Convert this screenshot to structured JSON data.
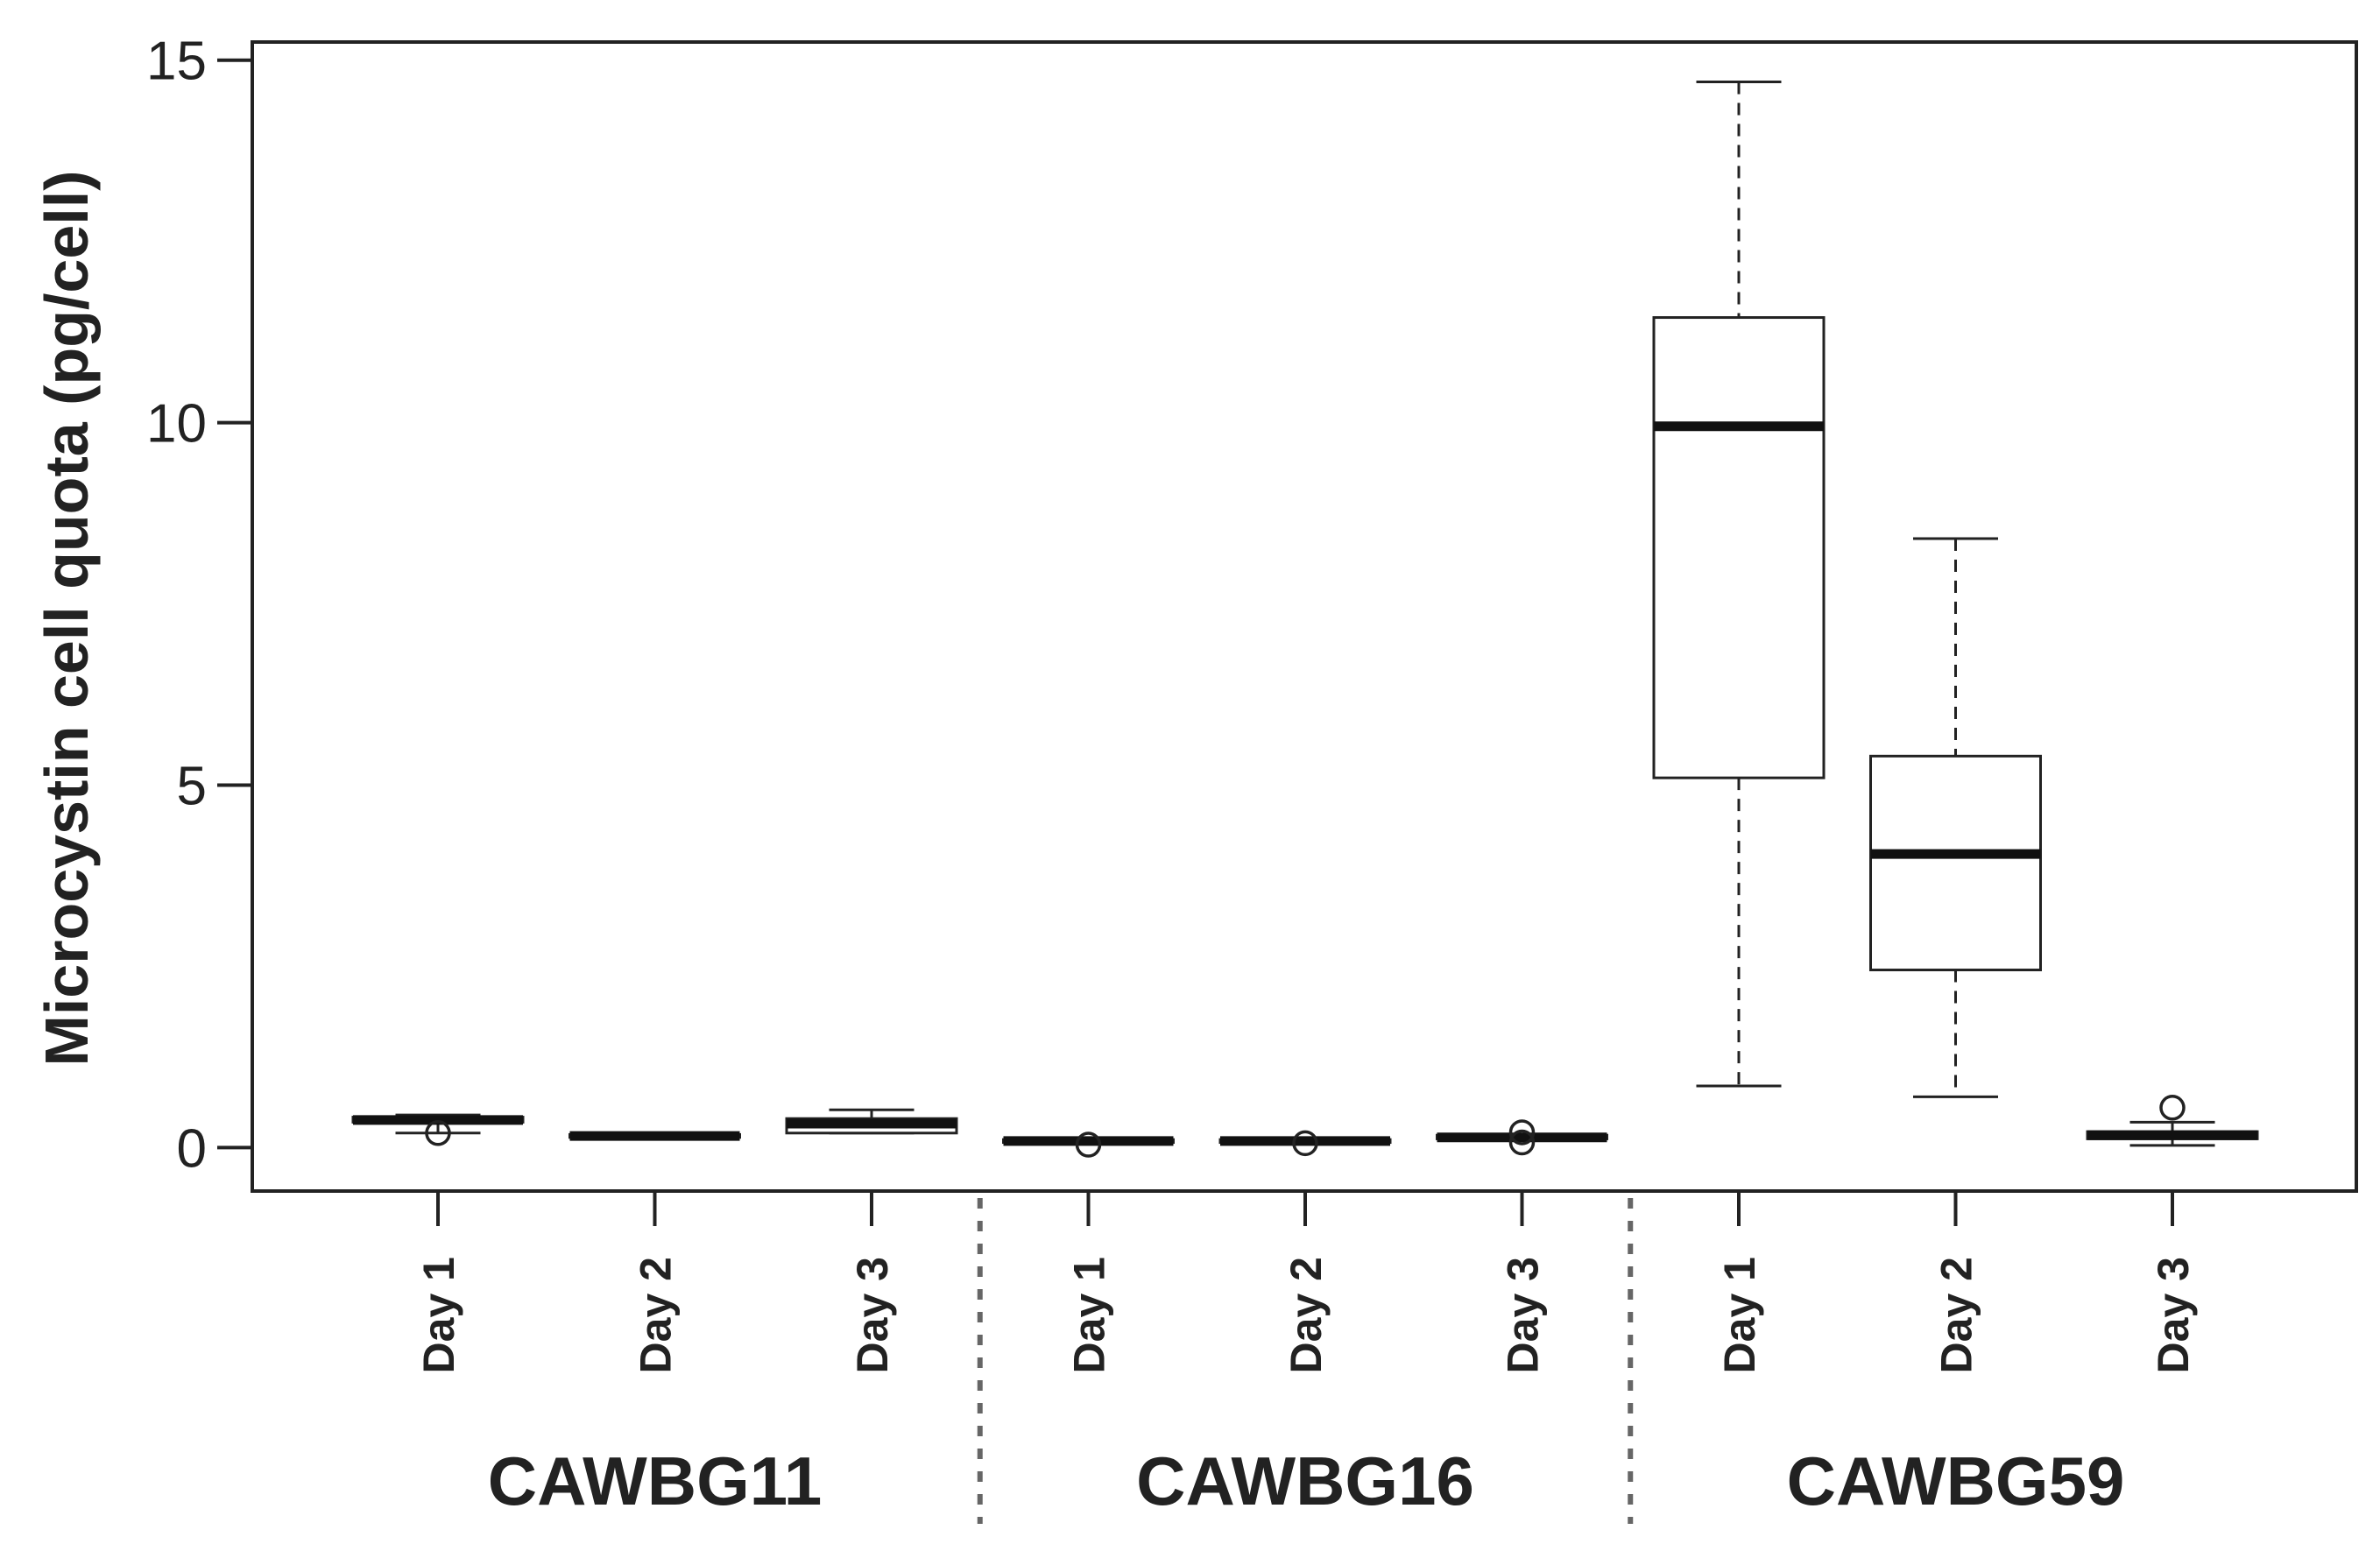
{
  "chart_data": {
    "type": "box",
    "ylabel": "Microcystin cell quota (pg/cell)",
    "xlabel": "",
    "ylim": [
      -0.6,
      15.25
    ],
    "yticks": [
      0,
      5,
      10,
      15
    ],
    "grid": false,
    "groups": [
      {
        "name": "CAWBG11",
        "categories": [
          "Day 1",
          "Day 2",
          "Day 3"
        ]
      },
      {
        "name": "CAWBG16",
        "categories": [
          "Day 1",
          "Day 2",
          "Day 3"
        ]
      },
      {
        "name": "CAWBG59",
        "categories": [
          "Day 1",
          "Day 2",
          "Day 3"
        ]
      }
    ],
    "boxes": [
      {
        "group": "CAWBG11",
        "category": "Day 1",
        "whisker_low": 0.2,
        "q1": 0.35,
        "median": 0.38,
        "q3": 0.42,
        "whisker_high": 0.45,
        "outliers": [
          0.2
        ]
      },
      {
        "group": "CAWBG11",
        "category": "Day 2",
        "whisker_low": 0.13,
        "q1": 0.14,
        "median": 0.16,
        "q3": 0.18,
        "whisker_high": 0.2,
        "outliers": []
      },
      {
        "group": "CAWBG11",
        "category": "Day 3",
        "whisker_low": 0.2,
        "q1": 0.2,
        "median": 0.33,
        "q3": 0.4,
        "whisker_high": 0.52,
        "outliers": []
      },
      {
        "group": "CAWBG16",
        "category": "Day 1",
        "whisker_low": 0.06,
        "q1": 0.07,
        "median": 0.09,
        "q3": 0.11,
        "whisker_high": 0.13,
        "outliers": [
          0.04
        ]
      },
      {
        "group": "CAWBG16",
        "category": "Day 2",
        "whisker_low": 0.06,
        "q1": 0.07,
        "median": 0.09,
        "q3": 0.11,
        "whisker_high": 0.13,
        "outliers": [
          0.06
        ]
      },
      {
        "group": "CAWBG16",
        "category": "Day 3",
        "whisker_low": 0.11,
        "q1": 0.12,
        "median": 0.14,
        "q3": 0.17,
        "whisker_high": 0.18,
        "outliers": [
          0.07,
          0.21
        ]
      },
      {
        "group": "CAWBG59",
        "category": "Day 1",
        "whisker_low": 0.85,
        "q1": 5.1,
        "median": 9.95,
        "q3": 11.45,
        "whisker_high": 14.7,
        "outliers": []
      },
      {
        "group": "CAWBG59",
        "category": "Day 2",
        "whisker_low": 0.7,
        "q1": 2.45,
        "median": 4.05,
        "q3": 5.4,
        "whisker_high": 8.4,
        "outliers": []
      },
      {
        "group": "CAWBG59",
        "category": "Day 3",
        "whisker_low": 0.03,
        "q1": 0.12,
        "median": 0.17,
        "q3": 0.22,
        "whisker_high": 0.35,
        "outliers": [
          0.55
        ]
      }
    ]
  }
}
